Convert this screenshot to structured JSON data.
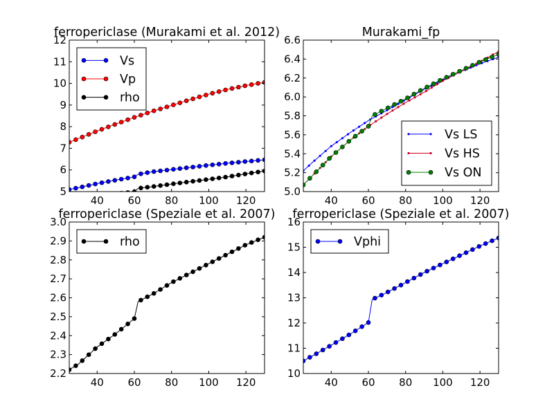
{
  "chart_data": [
    {
      "type": "line",
      "title": "ferropericlase (Murakami et al. 2012)",
      "xlim": [
        25,
        130
      ],
      "ylim": [
        5,
        12
      ],
      "x_ticks": [
        40,
        60,
        80,
        100,
        120
      ],
      "y_ticks": [
        5,
        6,
        7,
        8,
        9,
        10,
        11,
        12
      ],
      "legend_position": "top-left",
      "series": [
        {
          "name": "Vs",
          "color": "#0000ff",
          "marker": "circle",
          "x": [
            25,
            30,
            40,
            50,
            60,
            62,
            70,
            80,
            90,
            100,
            110,
            120,
            130
          ],
          "y": [
            5.1,
            5.18,
            5.37,
            5.53,
            5.68,
            5.8,
            5.92,
            6.02,
            6.12,
            6.22,
            6.31,
            6.39,
            6.47
          ]
        },
        {
          "name": "Vp",
          "color": "#ff0000",
          "marker": "circle",
          "x": [
            25,
            30,
            40,
            50,
            60,
            70,
            80,
            90,
            100,
            110,
            120,
            130
          ],
          "y": [
            7.28,
            7.45,
            7.8,
            8.12,
            8.43,
            8.72,
            8.98,
            9.25,
            9.5,
            9.72,
            9.9,
            10.05
          ]
        },
        {
          "name": "rho",
          "color": "#000000",
          "marker": "circle",
          "x": [
            25,
            30,
            40,
            50,
            60,
            62,
            70,
            80,
            90,
            100,
            110,
            120,
            130
          ],
          "y": [
            4.6,
            4.66,
            4.78,
            4.9,
            4.99,
            5.15,
            5.23,
            5.35,
            5.46,
            5.57,
            5.68,
            5.82,
            5.95
          ]
        }
      ]
    },
    {
      "type": "line",
      "title": "Murakami_fp",
      "xlim": [
        25,
        130
      ],
      "ylim": [
        5.0,
        6.6
      ],
      "x_ticks": [
        40,
        60,
        80,
        100,
        120
      ],
      "y_ticks": [
        5.0,
        5.2,
        5.4,
        5.6,
        5.8,
        6.0,
        6.2,
        6.4,
        6.6
      ],
      "legend_position": "bottom-right",
      "series": [
        {
          "name": "Vs LS",
          "color": "#0000ff",
          "marker": "small-dot",
          "x": [
            25,
            30,
            40,
            50,
            60,
            70,
            80,
            90,
            100,
            110,
            120,
            130
          ],
          "y": [
            5.22,
            5.31,
            5.48,
            5.62,
            5.75,
            5.86,
            5.97,
            6.08,
            6.18,
            6.27,
            6.35,
            6.42
          ]
        },
        {
          "name": "Vs HS",
          "color": "#cc0022",
          "marker": "small-dot",
          "x": [
            25,
            30,
            40,
            50,
            60,
            70,
            80,
            90,
            100,
            110,
            120,
            130
          ],
          "y": [
            5.07,
            5.17,
            5.37,
            5.54,
            5.69,
            5.82,
            5.94,
            6.05,
            6.17,
            6.27,
            6.37,
            6.48
          ]
        },
        {
          "name": "Vs ON",
          "color": "#008000",
          "marker": "circle",
          "x": [
            25,
            30,
            40,
            50,
            60,
            62,
            70,
            80,
            90,
            100,
            110,
            120,
            130
          ],
          "y": [
            5.07,
            5.17,
            5.37,
            5.54,
            5.69,
            5.8,
            5.88,
            5.98,
            6.09,
            6.19,
            6.28,
            6.37,
            6.45
          ]
        }
      ]
    },
    {
      "type": "line",
      "title": "ferropericlase (Speziale et al. 2007)",
      "xlim": [
        25,
        130
      ],
      "ylim": [
        2.2,
        3.0
      ],
      "x_ticks": [
        40,
        60,
        80,
        100,
        120
      ],
      "y_ticks": [
        2.2,
        2.3,
        2.4,
        2.5,
        2.6,
        2.7,
        2.8,
        2.9,
        3.0
      ],
      "legend_position": "top-left",
      "series": [
        {
          "name": "rho",
          "color": "#000000",
          "marker": "circle",
          "x": [
            25,
            30,
            40,
            50,
            60,
            62,
            70,
            80,
            90,
            100,
            110,
            120,
            130
          ],
          "y": [
            2.22,
            2.25,
            2.34,
            2.41,
            2.49,
            2.58,
            2.62,
            2.68,
            2.73,
            2.78,
            2.83,
            2.88,
            2.92
          ]
        }
      ]
    },
    {
      "type": "line",
      "title": "ferropericlase (Speziale et al. 2007)",
      "xlim": [
        25,
        130
      ],
      "ylim": [
        10,
        16
      ],
      "x_ticks": [
        40,
        60,
        80,
        100,
        120
      ],
      "y_ticks": [
        10,
        11,
        12,
        13,
        14,
        15,
        16
      ],
      "legend_position": "top-left",
      "series": [
        {
          "name": "Vphi",
          "color": "#0000ff",
          "marker": "circle",
          "x": [
            25,
            30,
            40,
            50,
            60,
            62,
            70,
            80,
            90,
            100,
            110,
            120,
            130
          ],
          "y": [
            10.5,
            10.7,
            11.12,
            11.55,
            12.02,
            12.93,
            13.21,
            13.6,
            14.0,
            14.35,
            14.7,
            15.05,
            15.37
          ]
        }
      ]
    }
  ]
}
